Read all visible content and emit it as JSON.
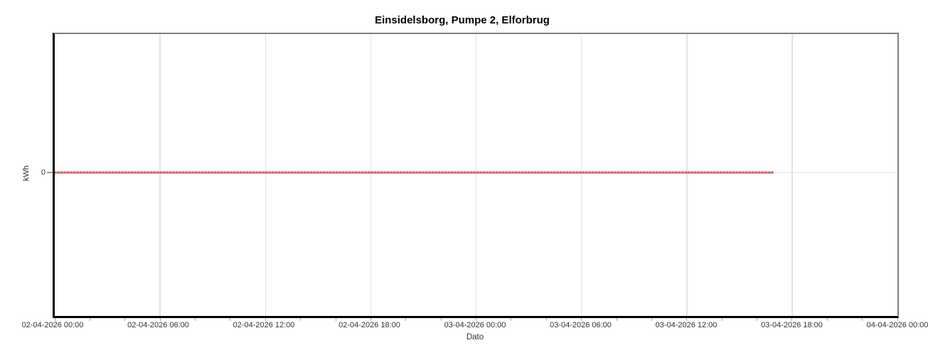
{
  "page": {
    "background": "#ffffff"
  },
  "chart_data": {
    "type": "line",
    "title": "Einsidelsborg, Pumpe 2, Elforbrug",
    "xlabel": "Dato",
    "ylabel": "kWh",
    "x_range": [
      "02-04-2026 00:00",
      "04-04-2026 00:00"
    ],
    "x_tick_labels": [
      "02-04-2026 00:00",
      "02-04-2026 06:00",
      "02-04-2026 12:00",
      "02-04-2026 18:00",
      "03-04-2026 00:00",
      "03-04-2026 06:00",
      "03-04-2026 12:00",
      "03-04-2026 18:00",
      "04-04-2026 00:00"
    ],
    "y_tick_labels": [
      "0"
    ],
    "major_x_tick_interval_hours": 6,
    "minor_x_tick_interval_hours": 2,
    "grid": true,
    "legend": false,
    "zero_line_frac_from_top": 0.49,
    "series": [
      {
        "name": "Elforbrug",
        "unit": "kWh",
        "constant_value": 0,
        "x_start": "02-04-2026 00:00",
        "x_end": "03-04-2026 17:00",
        "x_end_frac": 0.853,
        "points": [
          [
            "02-04-2026 00:00",
            0
          ],
          [
            "03-04-2026 17:00",
            0
          ]
        ]
      }
    ]
  },
  "colors": {
    "series_red": "#ea7a78",
    "series_red_dark": "#d05552",
    "gridline": "#e2e2e2",
    "axis_black": "#000000",
    "border_gray": "#808080",
    "tick_gray": "#aaaaaa",
    "label_text": "#333333",
    "background": "#ffffff"
  }
}
